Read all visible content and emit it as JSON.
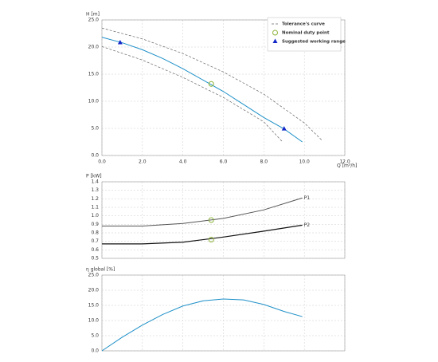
{
  "chart_data": [
    {
      "type": "line",
      "ylabel": "H [m]",
      "xlabel": "Q [m³/h]",
      "xlim": [
        0,
        12
      ],
      "ylim": [
        0,
        25
      ],
      "grid": true,
      "show_xtick_labels": true,
      "legend": "upper right",
      "xticks": [
        {
          "value": 0,
          "label": "0.0"
        },
        {
          "value": 2,
          "label": "2.0"
        },
        {
          "value": 4,
          "label": "4.0"
        },
        {
          "value": 6,
          "label": "6.0"
        },
        {
          "value": 8,
          "label": "8.0"
        },
        {
          "value": 10,
          "label": "10.0"
        },
        {
          "value": 12,
          "label": "12.0"
        }
      ],
      "yticks": [
        {
          "value": 0,
          "label": "0.0"
        },
        {
          "value": 5,
          "label": "5.0"
        },
        {
          "value": 10,
          "label": "10.0"
        },
        {
          "value": 15,
          "label": "15.0"
        },
        {
          "value": 20,
          "label": "20.0"
        },
        {
          "value": 25,
          "label": "25.0"
        }
      ],
      "series": [
        {
          "color": "#1e90c8",
          "x": [
            0,
            1,
            2,
            3,
            4,
            5,
            6,
            7,
            8,
            9,
            9.9
          ],
          "values": [
            21.8,
            20.8,
            19.5,
            17.9,
            16.0,
            13.9,
            11.8,
            9.4,
            7.0,
            4.9,
            2.5
          ]
        },
        {
          "name": "Tolerance's curve",
          "color": "#666666",
          "dash": true,
          "x": [
            0,
            2,
            4,
            6,
            8,
            10,
            10.9
          ],
          "values": [
            23.5,
            21.5,
            18.8,
            15.4,
            11.3,
            6.0,
            2.7
          ]
        },
        {
          "color": "#666666",
          "dash": true,
          "x": [
            0,
            2,
            4,
            6,
            8,
            8.9
          ],
          "values": [
            20.1,
            17.6,
            14.4,
            10.7,
            6.2,
            2.6
          ]
        },
        {
          "name": "Nominal duty point",
          "color": "#8db33a",
          "marker": "circle",
          "x": [
            5.4
          ],
          "values": [
            13.2
          ]
        },
        {
          "name": "Suggested working range",
          "color": "#1428c8",
          "marker": "triangle",
          "x": [
            0.9,
            9.0
          ],
          "values": [
            20.8,
            4.9
          ]
        }
      ]
    },
    {
      "type": "line",
      "ylabel": "P [kW]",
      "xlim": [
        0,
        12
      ],
      "ylim": [
        0.5,
        1.4
      ],
      "grid": true,
      "show_xtick_labels": false,
      "xticks": [
        0,
        2,
        4,
        6,
        8,
        10,
        12
      ],
      "yticks": [
        0.5,
        0.6,
        0.7,
        0.8,
        0.9,
        {
          "value": 1,
          "label": "1.0"
        },
        1.1,
        1.2,
        1.3,
        1.4
      ],
      "series": [
        {
          "name": "P1",
          "color": "#555555",
          "end_label": true,
          "x": [
            0,
            2,
            4,
            6,
            8,
            9.9
          ],
          "values": [
            0.88,
            0.88,
            0.91,
            0.97,
            1.07,
            1.21
          ]
        },
        {
          "name": "P2",
          "color": "#111111",
          "end_label": true,
          "width": 1.2,
          "x": [
            0,
            2,
            4,
            6,
            8,
            9.9
          ],
          "values": [
            0.67,
            0.67,
            0.69,
            0.75,
            0.82,
            0.89
          ]
        },
        {
          "color": "#8db33a",
          "marker": "circle",
          "x": [
            5.4,
            5.4
          ],
          "values": [
            0.95,
            0.72
          ]
        }
      ]
    },
    {
      "type": "line",
      "ylabel": "η global [%]",
      "xlim": [
        0,
        12
      ],
      "ylim": [
        0,
        25
      ],
      "grid": true,
      "show_xtick_labels": false,
      "xticks": [
        0,
        2,
        4,
        6,
        8,
        10,
        12
      ],
      "yticks": [
        {
          "value": 0,
          "label": "0.0"
        },
        {
          "value": 5,
          "label": "5.0"
        },
        {
          "value": 10,
          "label": "10.0"
        },
        {
          "value": 15,
          "label": "15.0"
        },
        {
          "value": 20,
          "label": "20.0"
        },
        {
          "value": 25,
          "label": "25.0"
        }
      ],
      "series": [
        {
          "color": "#1e90c8",
          "x": [
            0,
            1,
            2,
            3,
            4,
            5,
            6,
            7,
            8,
            9,
            9.9
          ],
          "values": [
            0,
            4.5,
            8.5,
            12.0,
            14.8,
            16.5,
            17.1,
            16.8,
            15.3,
            13.0,
            11.3
          ]
        }
      ]
    }
  ]
}
